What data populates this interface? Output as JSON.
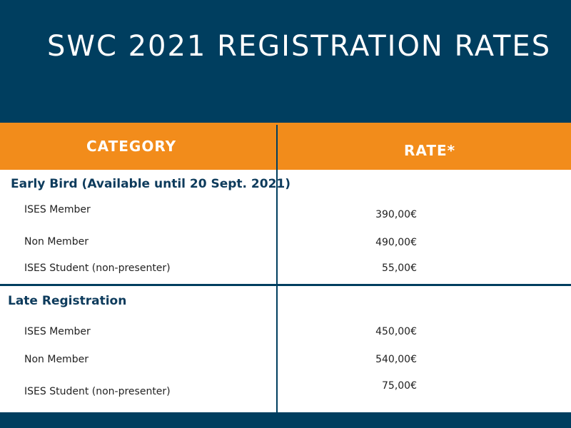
{
  "title": "SWC 2021 REGISTRATION RATES",
  "columns": {
    "category": "CATEGORY",
    "rate": "RATE*"
  },
  "sections": [
    {
      "title": "Early Bird (Available until 20 Sept. 2021)",
      "rows": [
        {
          "label": "ISES Member",
          "rate": "390,00€"
        },
        {
          "label": "Non Member",
          "rate": "490,00€"
        },
        {
          "label": "ISES Student (non-presenter)",
          "rate": "55,00€"
        }
      ]
    },
    {
      "title": "Late Registration",
      "rows": [
        {
          "label": "ISES Member",
          "rate": "450,00€"
        },
        {
          "label": "Non Member",
          "rate": "540,00€"
        },
        {
          "label": "ISES Student (non-presenter)",
          "rate": "75,00€"
        }
      ]
    }
  ],
  "colors": {
    "navy": "#003e5f",
    "orange": "#f28c1b",
    "text": "#222222"
  }
}
